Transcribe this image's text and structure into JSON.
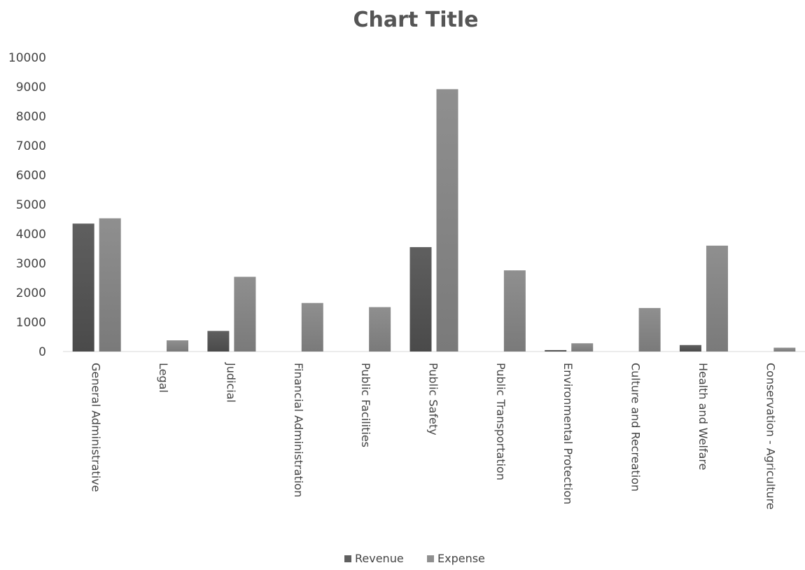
{
  "chart_data": {
    "type": "bar",
    "title": "Chart Title",
    "xlabel": "",
    "ylabel": "",
    "ylim": [
      0,
      10000
    ],
    "yticks": [
      "0",
      "1000",
      "2000",
      "3000",
      "4000",
      "5000",
      "6000",
      "7000",
      "8000",
      "9000",
      "10000"
    ],
    "grid": false,
    "legend_position": "bottom",
    "categories": [
      "General Administrative",
      "Legal",
      "Judicial",
      "Financial Administration",
      "Public Facilities",
      "Public Safety",
      "Public Transportation",
      "Environmental Protection",
      "Culture and Recreation",
      "Health and Welfare",
      "Conservation - Agriculture"
    ],
    "series": [
      {
        "name": "Revenue",
        "color": "#5f5f5f",
        "values": [
          4350,
          0,
          700,
          0,
          0,
          3550,
          0,
          50,
          0,
          220,
          0
        ]
      },
      {
        "name": "Expense",
        "color": "#8f8f8f",
        "values": [
          4530,
          380,
          2540,
          1650,
          1510,
          8920,
          2760,
          280,
          1480,
          3600,
          130
        ]
      }
    ]
  }
}
